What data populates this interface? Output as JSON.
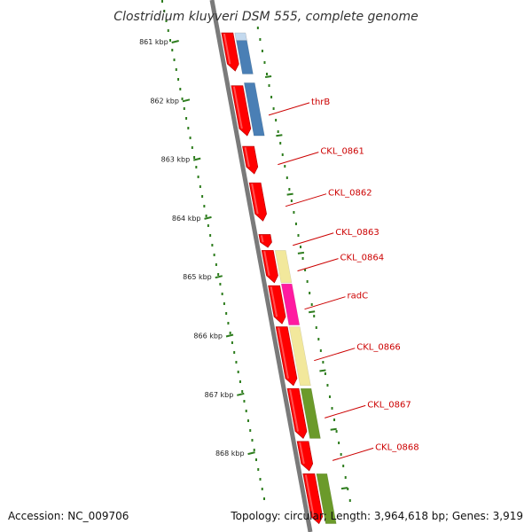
{
  "title": "Clostridium kluyveri DSM 555, complete genome",
  "accession_label": "Accession: NC_009706",
  "topology_label": "Topology: circular; Length: 3,964,618 bp; Genes: 3,919",
  "colors": {
    "cds": "#ff0000",
    "label": "#cc0000",
    "backbone": "#7a7a7a",
    "tick": "#2e7d1e",
    "blue": "#4a7fb5",
    "yellow": "#f2e89c",
    "magenta": "#ff1aa0",
    "green": "#6b9a2a",
    "pink": "#f9cccc",
    "lightblue": "#c3d9ee"
  },
  "scale": {
    "unit": "kbp",
    "ticks": [
      {
        "label": "861 kbp",
        "kbp": 861
      },
      {
        "label": "862 kbp",
        "kbp": 862
      },
      {
        "label": "863 kbp",
        "kbp": 863
      },
      {
        "label": "864 kbp",
        "kbp": 864
      },
      {
        "label": "865 kbp",
        "kbp": 865
      },
      {
        "label": "866 kbp",
        "kbp": 866
      },
      {
        "label": "867 kbp",
        "kbp": 867
      },
      {
        "label": "868 kbp",
        "kbp": 868
      }
    ]
  },
  "genes": [
    {
      "label": "",
      "start": 860.85,
      "end": 861.5,
      "color_key": "cds"
    },
    {
      "label": "thrB",
      "start": 861.75,
      "end": 862.6,
      "color_key": "cds"
    },
    {
      "label": "CKL_0861",
      "start": 862.78,
      "end": 863.25,
      "color_key": "cds"
    },
    {
      "label": "CKL_0862",
      "start": 863.4,
      "end": 864.05,
      "color_key": "cds"
    },
    {
      "label": "CKL_0863",
      "start": 864.28,
      "end": 864.5,
      "color_key": "cds"
    },
    {
      "label": "CKL_0864",
      "start": 864.55,
      "end": 865.1,
      "color_key": "cds"
    },
    {
      "label": "radC",
      "start": 865.15,
      "end": 865.8,
      "color_key": "cds"
    },
    {
      "label": "CKL_0866",
      "start": 865.85,
      "end": 866.85,
      "color_key": "cds"
    },
    {
      "label": "CKL_0867",
      "start": 866.9,
      "end": 867.75,
      "color_key": "cds"
    },
    {
      "label": "CKL_0868",
      "start": 867.8,
      "end": 868.3,
      "color_key": "cds"
    },
    {
      "label": "",
      "start": 868.35,
      "end": 869.2,
      "color_key": "cds"
    }
  ],
  "feature_blocks": [
    {
      "start": 860.85,
      "end": 860.98,
      "color_key": "pink"
    },
    {
      "start": 860.85,
      "end": 860.98,
      "color_key": "lightblue"
    },
    {
      "start": 860.98,
      "end": 861.55,
      "color_key": "blue"
    },
    {
      "start": 861.7,
      "end": 862.6,
      "color_key": "blue"
    },
    {
      "start": 864.55,
      "end": 865.1,
      "color_key": "yellow"
    },
    {
      "start": 865.12,
      "end": 865.82,
      "color_key": "magenta"
    },
    {
      "start": 865.85,
      "end": 866.85,
      "color_key": "yellow"
    },
    {
      "start": 866.9,
      "end": 867.75,
      "color_key": "green"
    },
    {
      "start": 868.35,
      "end": 869.2,
      "color_key": "green"
    }
  ]
}
